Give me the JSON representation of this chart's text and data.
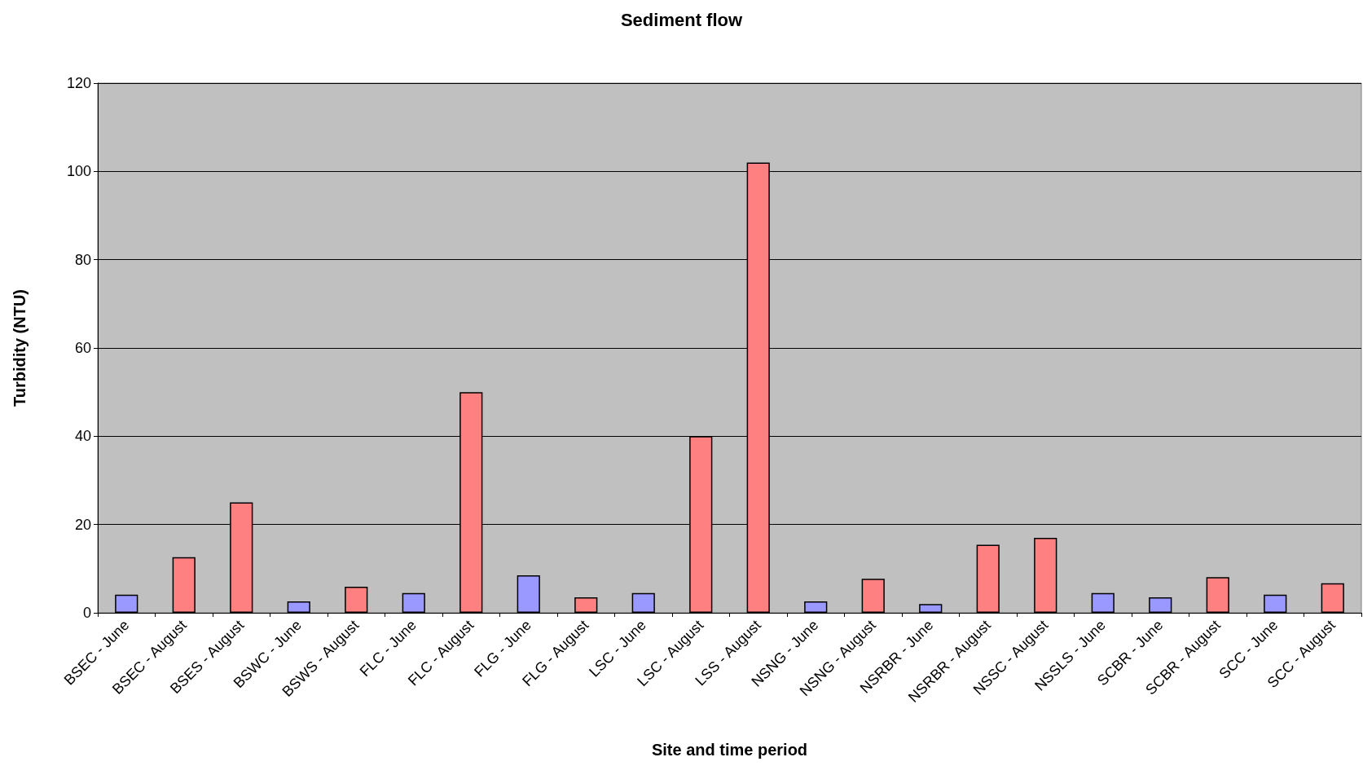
{
  "chart_data": {
    "type": "bar",
    "title": "Sediment flow",
    "xlabel": "Site and time period",
    "ylabel": "Turbidity (NTU)",
    "categories": [
      "BSEC - June",
      "BSEC - August",
      "BSES - August",
      "BSWC - June",
      "BSWS - August",
      "FLC - June",
      "FLC - August",
      "FLG - June",
      "FLG - August",
      "LSC - June",
      "LSC - August",
      "LSS - August",
      "NSNG - June",
      "NSNG - August",
      "NSRBR - June",
      "NSRBR - August",
      "NSSC - August",
      "NSSLS - June",
      "SCBR - June",
      "SCBR - August",
      "SCC - June",
      "SCC - August"
    ],
    "values": [
      4.1,
      12.6,
      25,
      2.6,
      5.9,
      4.5,
      50,
      8.5,
      3.5,
      4.5,
      40,
      102,
      2.6,
      7.7,
      2,
      15.4,
      17,
      4.5,
      3.5,
      8.1,
      4.1,
      6.7
    ],
    "colors": [
      "#9999ff",
      "#ff8080",
      "#ff8080",
      "#9999ff",
      "#ff8080",
      "#9999ff",
      "#ff8080",
      "#9999ff",
      "#ff8080",
      "#9999ff",
      "#ff8080",
      "#ff8080",
      "#9999ff",
      "#ff8080",
      "#9999ff",
      "#ff8080",
      "#ff8080",
      "#9999ff",
      "#9999ff",
      "#ff8080",
      "#9999ff",
      "#ff8080"
    ],
    "ylim": [
      0,
      120
    ],
    "yticks": [
      0,
      20,
      40,
      60,
      80,
      100,
      120
    ],
    "grid": "y"
  }
}
